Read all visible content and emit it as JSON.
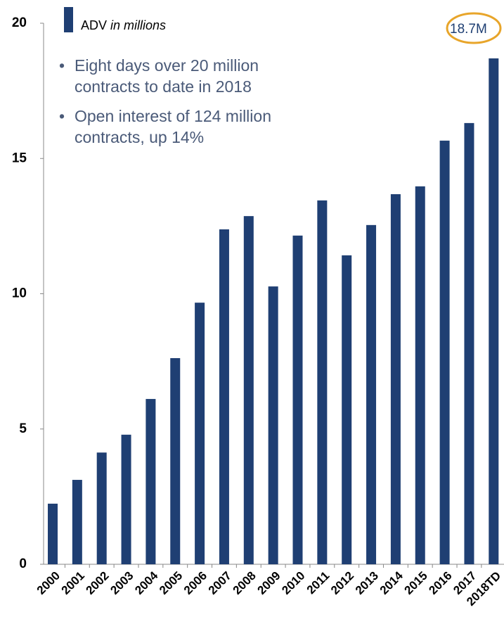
{
  "chart_data": {
    "type": "bar",
    "unit_note": "in millions",
    "bullets": [
      "Eight days over 20 million contracts to date in 2018",
      "Open interest of 124 million contracts, up 14%"
    ],
    "annotation": "18.7M",
    "categories": [
      "2000",
      "2001",
      "2002",
      "2003",
      "2004",
      "2005",
      "2006",
      "2007",
      "2008",
      "2009",
      "2010",
      "2011",
      "2012",
      "2013",
      "2014",
      "2015",
      "2016",
      "2017",
      "2018TD"
    ],
    "series": [
      {
        "name": "ADV",
        "color": "#1f3f73",
        "values": [
          2.24,
          3.12,
          4.13,
          4.79,
          6.11,
          7.62,
          9.67,
          12.38,
          12.87,
          10.27,
          12.15,
          13.45,
          11.42,
          12.54,
          13.68,
          13.97,
          15.66,
          16.31,
          18.7
        ]
      }
    ],
    "ylim": [
      0,
      20
    ],
    "yticks": [
      0,
      5,
      10,
      15,
      20
    ],
    "grid": false
  }
}
